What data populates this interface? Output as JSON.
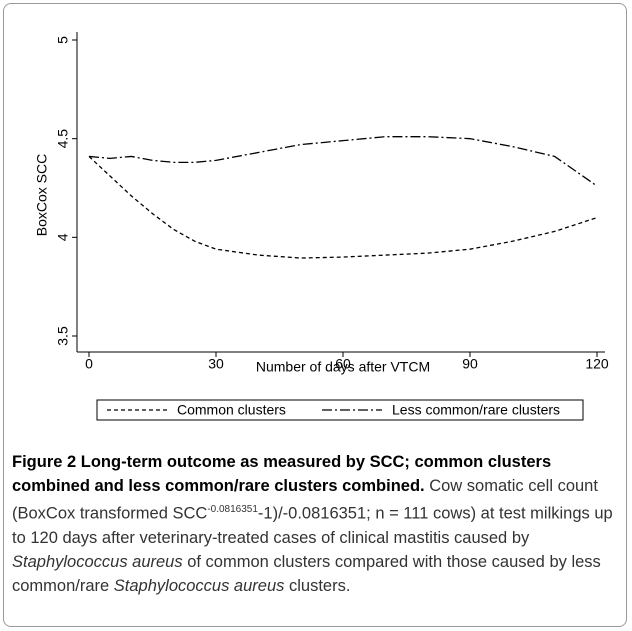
{
  "chart_data": {
    "type": "line",
    "x_label": "Number of days after VTCM",
    "y_label": "BoxCox SCC",
    "xlim": [
      0,
      120
    ],
    "xticks": [
      0,
      30,
      60,
      90,
      120
    ],
    "ylim": [
      3.5,
      5
    ],
    "yticks": [
      3.5,
      4,
      {
        "value": 4.5,
        "label": "4.5"
      },
      5
    ],
    "legend": "bottom",
    "x": [
      0,
      5,
      10,
      15,
      20,
      25,
      30,
      40,
      50,
      60,
      70,
      80,
      90,
      100,
      110,
      120
    ],
    "series": [
      {
        "name": "Common clusters",
        "color": "#000000",
        "dash": "4,3",
        "values": [
          4.41,
          4.31,
          4.21,
          4.12,
          4.04,
          3.98,
          3.94,
          3.91,
          3.895,
          3.9,
          3.91,
          3.92,
          3.94,
          3.98,
          4.03,
          4.1
        ]
      },
      {
        "name": "Less common/rare clusters",
        "color": "#000000",
        "dash": "10,3,2,3",
        "values": [
          4.41,
          4.4,
          4.41,
          4.39,
          4.38,
          4.38,
          4.39,
          4.43,
          4.47,
          4.49,
          4.51,
          4.51,
          4.5,
          4.46,
          4.41,
          4.26
        ]
      }
    ]
  },
  "caption": {
    "title": "Figure 2 Long-term outcome as measured by SCC; common clusters combined and less common/rare clusters combined.",
    "body": [
      " Cow somatic cell count (BoxCox transformed SCC",
      "-0.0816351",
      "-1)/-0.0816351; n = 111 cows) at test milkings up to 120 days after veterinary-treated cases of clinical mastitis caused by ",
      "Staphylococcus aureus",
      " of common clusters compared with those caused by less common/rare ",
      "Staphylococcus aureus",
      " clusters."
    ]
  }
}
